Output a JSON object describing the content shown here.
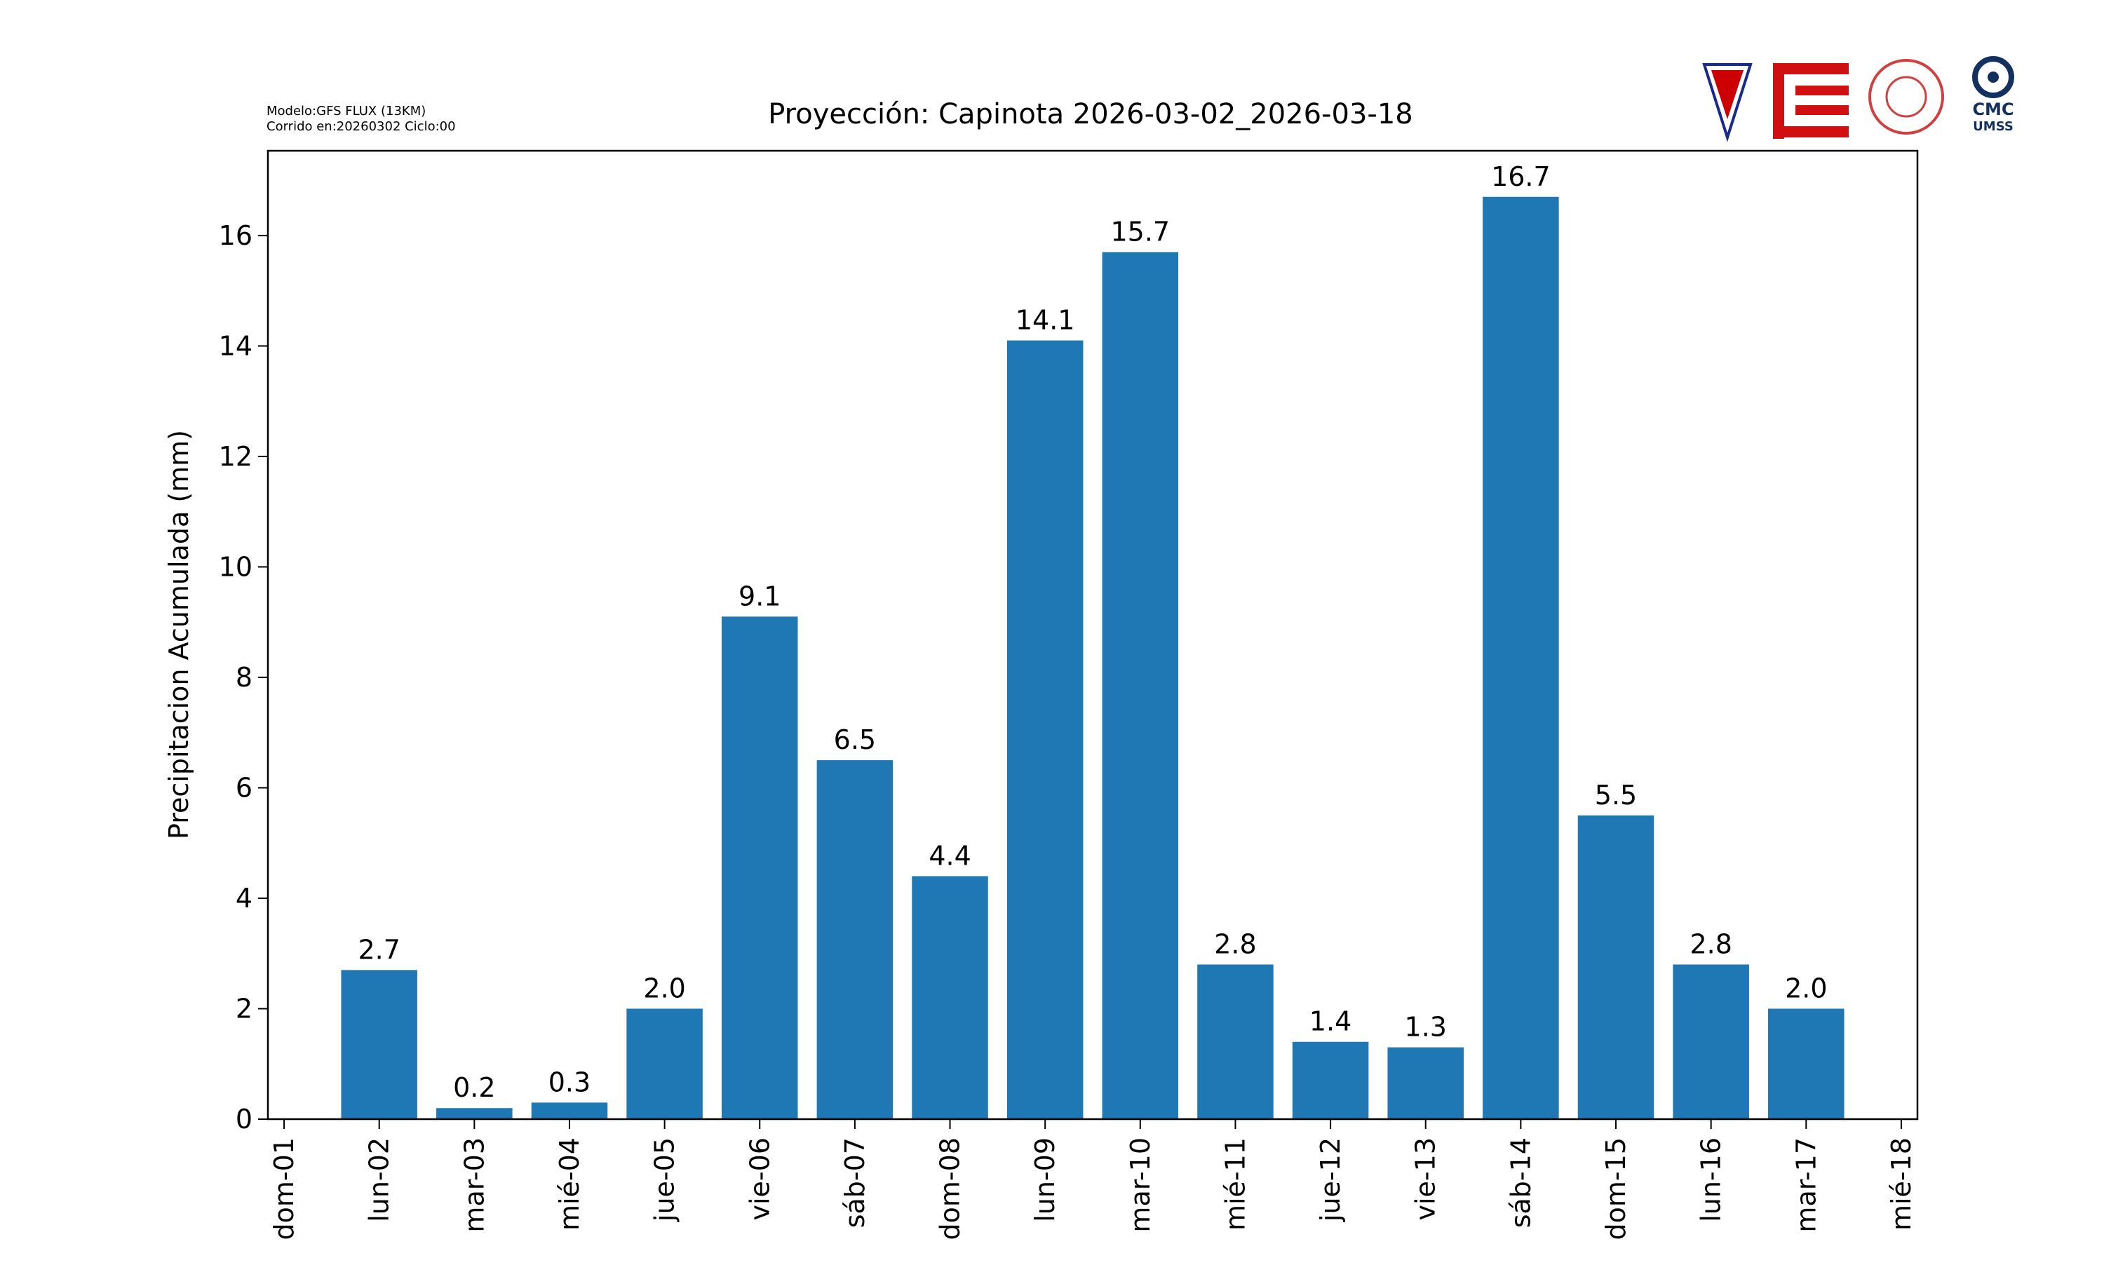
{
  "chart_data": {
    "type": "bar",
    "title": "Proyección: Capinota  2026-03-02_2026-03-18",
    "notes": [
      "Modelo:GFS FLUX (13KM)",
      "Corrido en:20260302 Ciclo:00"
    ],
    "logo_text": [
      "CMC",
      "UMSS"
    ],
    "y_label": "Precipitacion Acumulada (mm)",
    "categories": [
      "dom-01",
      "lun-02",
      "mar-03",
      "mié-04",
      "jue-05",
      "vie-06",
      "sáb-07",
      "dom-08",
      "lun-09",
      "mar-10",
      "mié-11",
      "jue-12",
      "vie-13",
      "sáb-14",
      "dom-15",
      "lun-16",
      "mar-17",
      "mié-18"
    ],
    "values": [
      null,
      2.7,
      0.2,
      0.3,
      2.0,
      9.1,
      6.5,
      4.4,
      14.1,
      15.7,
      2.8,
      1.4,
      1.3,
      16.7,
      5.5,
      2.8,
      2.0,
      null
    ],
    "value_labels": [
      null,
      "2.7",
      "0.2",
      "0.3",
      "2.0",
      "9.1",
      "6.5",
      "4.4",
      "14.1",
      "15.7",
      "2.8",
      "1.4",
      "1.3",
      "16.7",
      "5.5",
      "2.8",
      "2.0",
      null
    ],
    "color": "#1f77b4",
    "ylim": [
      0,
      17.535
    ],
    "yticks": [
      0,
      2,
      4,
      6,
      8,
      10,
      12,
      14,
      16
    ]
  }
}
